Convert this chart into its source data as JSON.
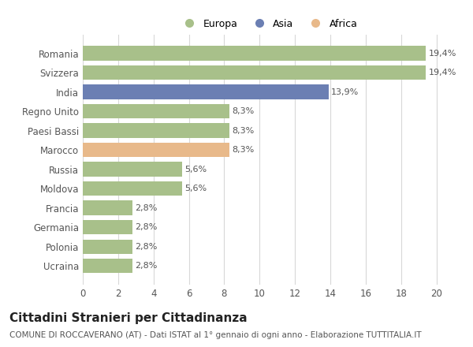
{
  "categories": [
    "Romania",
    "Svizzera",
    "India",
    "Regno Unito",
    "Paesi Bassi",
    "Marocco",
    "Russia",
    "Moldova",
    "Francia",
    "Germania",
    "Polonia",
    "Ucraina"
  ],
  "values": [
    19.4,
    19.4,
    13.9,
    8.3,
    8.3,
    8.3,
    5.6,
    5.6,
    2.8,
    2.8,
    2.8,
    2.8
  ],
  "labels": [
    "19,4%",
    "19,4%",
    "13,9%",
    "8,3%",
    "8,3%",
    "8,3%",
    "5,6%",
    "5,6%",
    "2,8%",
    "2,8%",
    "2,8%",
    "2,8%"
  ],
  "colors": [
    "#a8c08a",
    "#a8c08a",
    "#6b7fb3",
    "#a8c08a",
    "#a8c08a",
    "#e8b98a",
    "#a8c08a",
    "#a8c08a",
    "#a8c08a",
    "#a8c08a",
    "#a8c08a",
    "#a8c08a"
  ],
  "legend": [
    {
      "label": "Europa",
      "color": "#a8c08a"
    },
    {
      "label": "Asia",
      "color": "#6b7fb3"
    },
    {
      "label": "Africa",
      "color": "#e8b98a"
    }
  ],
  "xlim": [
    0,
    21
  ],
  "xticks": [
    0,
    2,
    4,
    6,
    8,
    10,
    12,
    14,
    16,
    18,
    20
  ],
  "title": "Cittadini Stranieri per Cittadinanza",
  "subtitle": "COMUNE DI ROCCAVERANO (AT) - Dati ISTAT al 1° gennaio di ogni anno - Elaborazione TUTTITALIA.IT",
  "bg_color": "#ffffff",
  "grid_color": "#d8d8d8",
  "bar_height": 0.75,
  "label_fontsize": 8,
  "tick_label_fontsize": 8.5,
  "title_fontsize": 11,
  "subtitle_fontsize": 7.5
}
